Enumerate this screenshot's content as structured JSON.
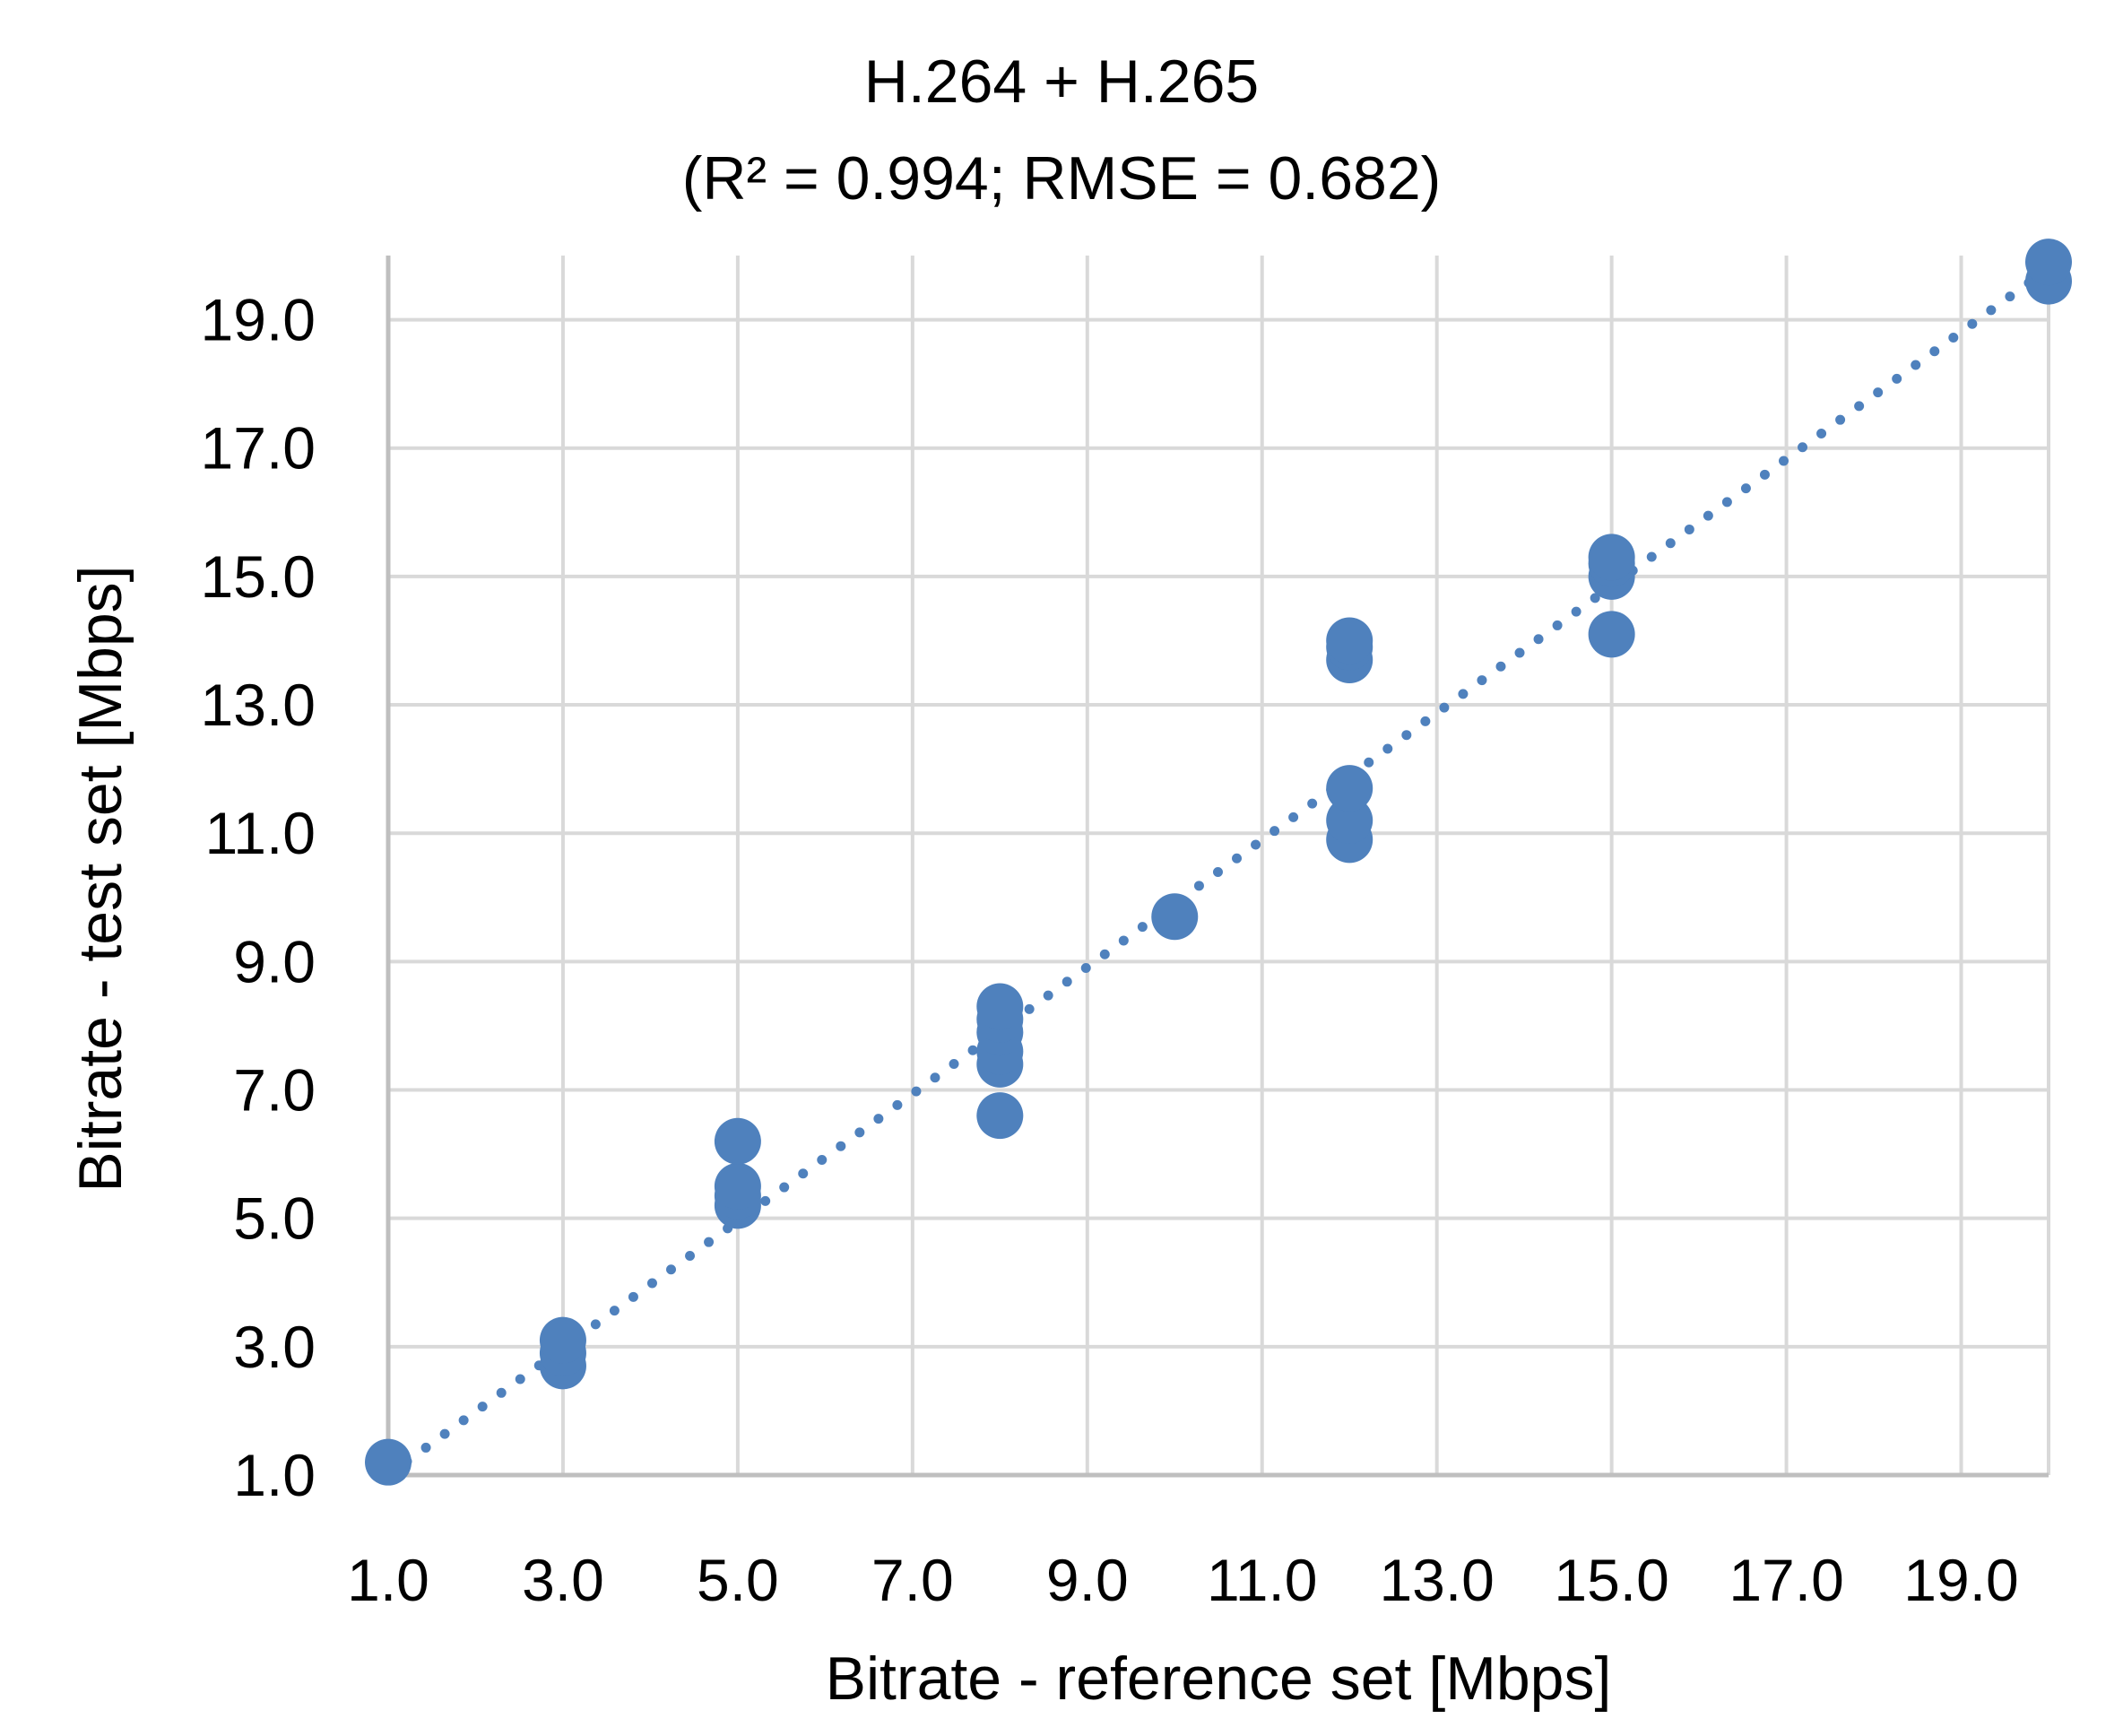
{
  "chart_data": {
    "type": "scatter",
    "title": "H.264 + H.265",
    "subtitle": "(R² = 0.994; RMSE = 0.682)",
    "xlabel": "Bitrate - reference set [Mbps]",
    "ylabel": "Bitrate - test set [Mbps]",
    "xlim": [
      1.0,
      20.0
    ],
    "ylim": [
      1.0,
      20.0
    ],
    "xticks": [
      "1.0",
      "3.0",
      "5.0",
      "7.0",
      "9.0",
      "11.0",
      "13.0",
      "15.0",
      "17.0",
      "19.0"
    ],
    "yticks": [
      "1.0",
      "3.0",
      "5.0",
      "7.0",
      "9.0",
      "11.0",
      "13.0",
      "15.0",
      "17.0",
      "19.0"
    ],
    "grid": true,
    "marker_color": "#4f81bd",
    "trendline": {
      "style": "dotted",
      "color": "#4f81bd",
      "x": [
        1.0,
        20.0
      ],
      "y": [
        1.0,
        19.8
      ]
    },
    "series": [
      {
        "x": [
          1,
          3,
          3,
          3,
          5,
          5,
          5,
          5,
          8,
          8,
          8,
          8,
          8,
          8,
          10,
          12,
          12,
          12,
          12,
          12,
          12,
          15,
          15,
          15,
          15,
          20,
          20
        ],
        "y": [
          1.2,
          2.7,
          2.9,
          3.1,
          5.2,
          5.35,
          5.5,
          6.2,
          6.6,
          7.4,
          7.6,
          7.9,
          8.1,
          8.3,
          9.7,
          10.9,
          11.2,
          11.7,
          13.7,
          13.9,
          14.0,
          14.1,
          15.0,
          15.2,
          15.3,
          19.6,
          19.9
        ]
      }
    ]
  }
}
